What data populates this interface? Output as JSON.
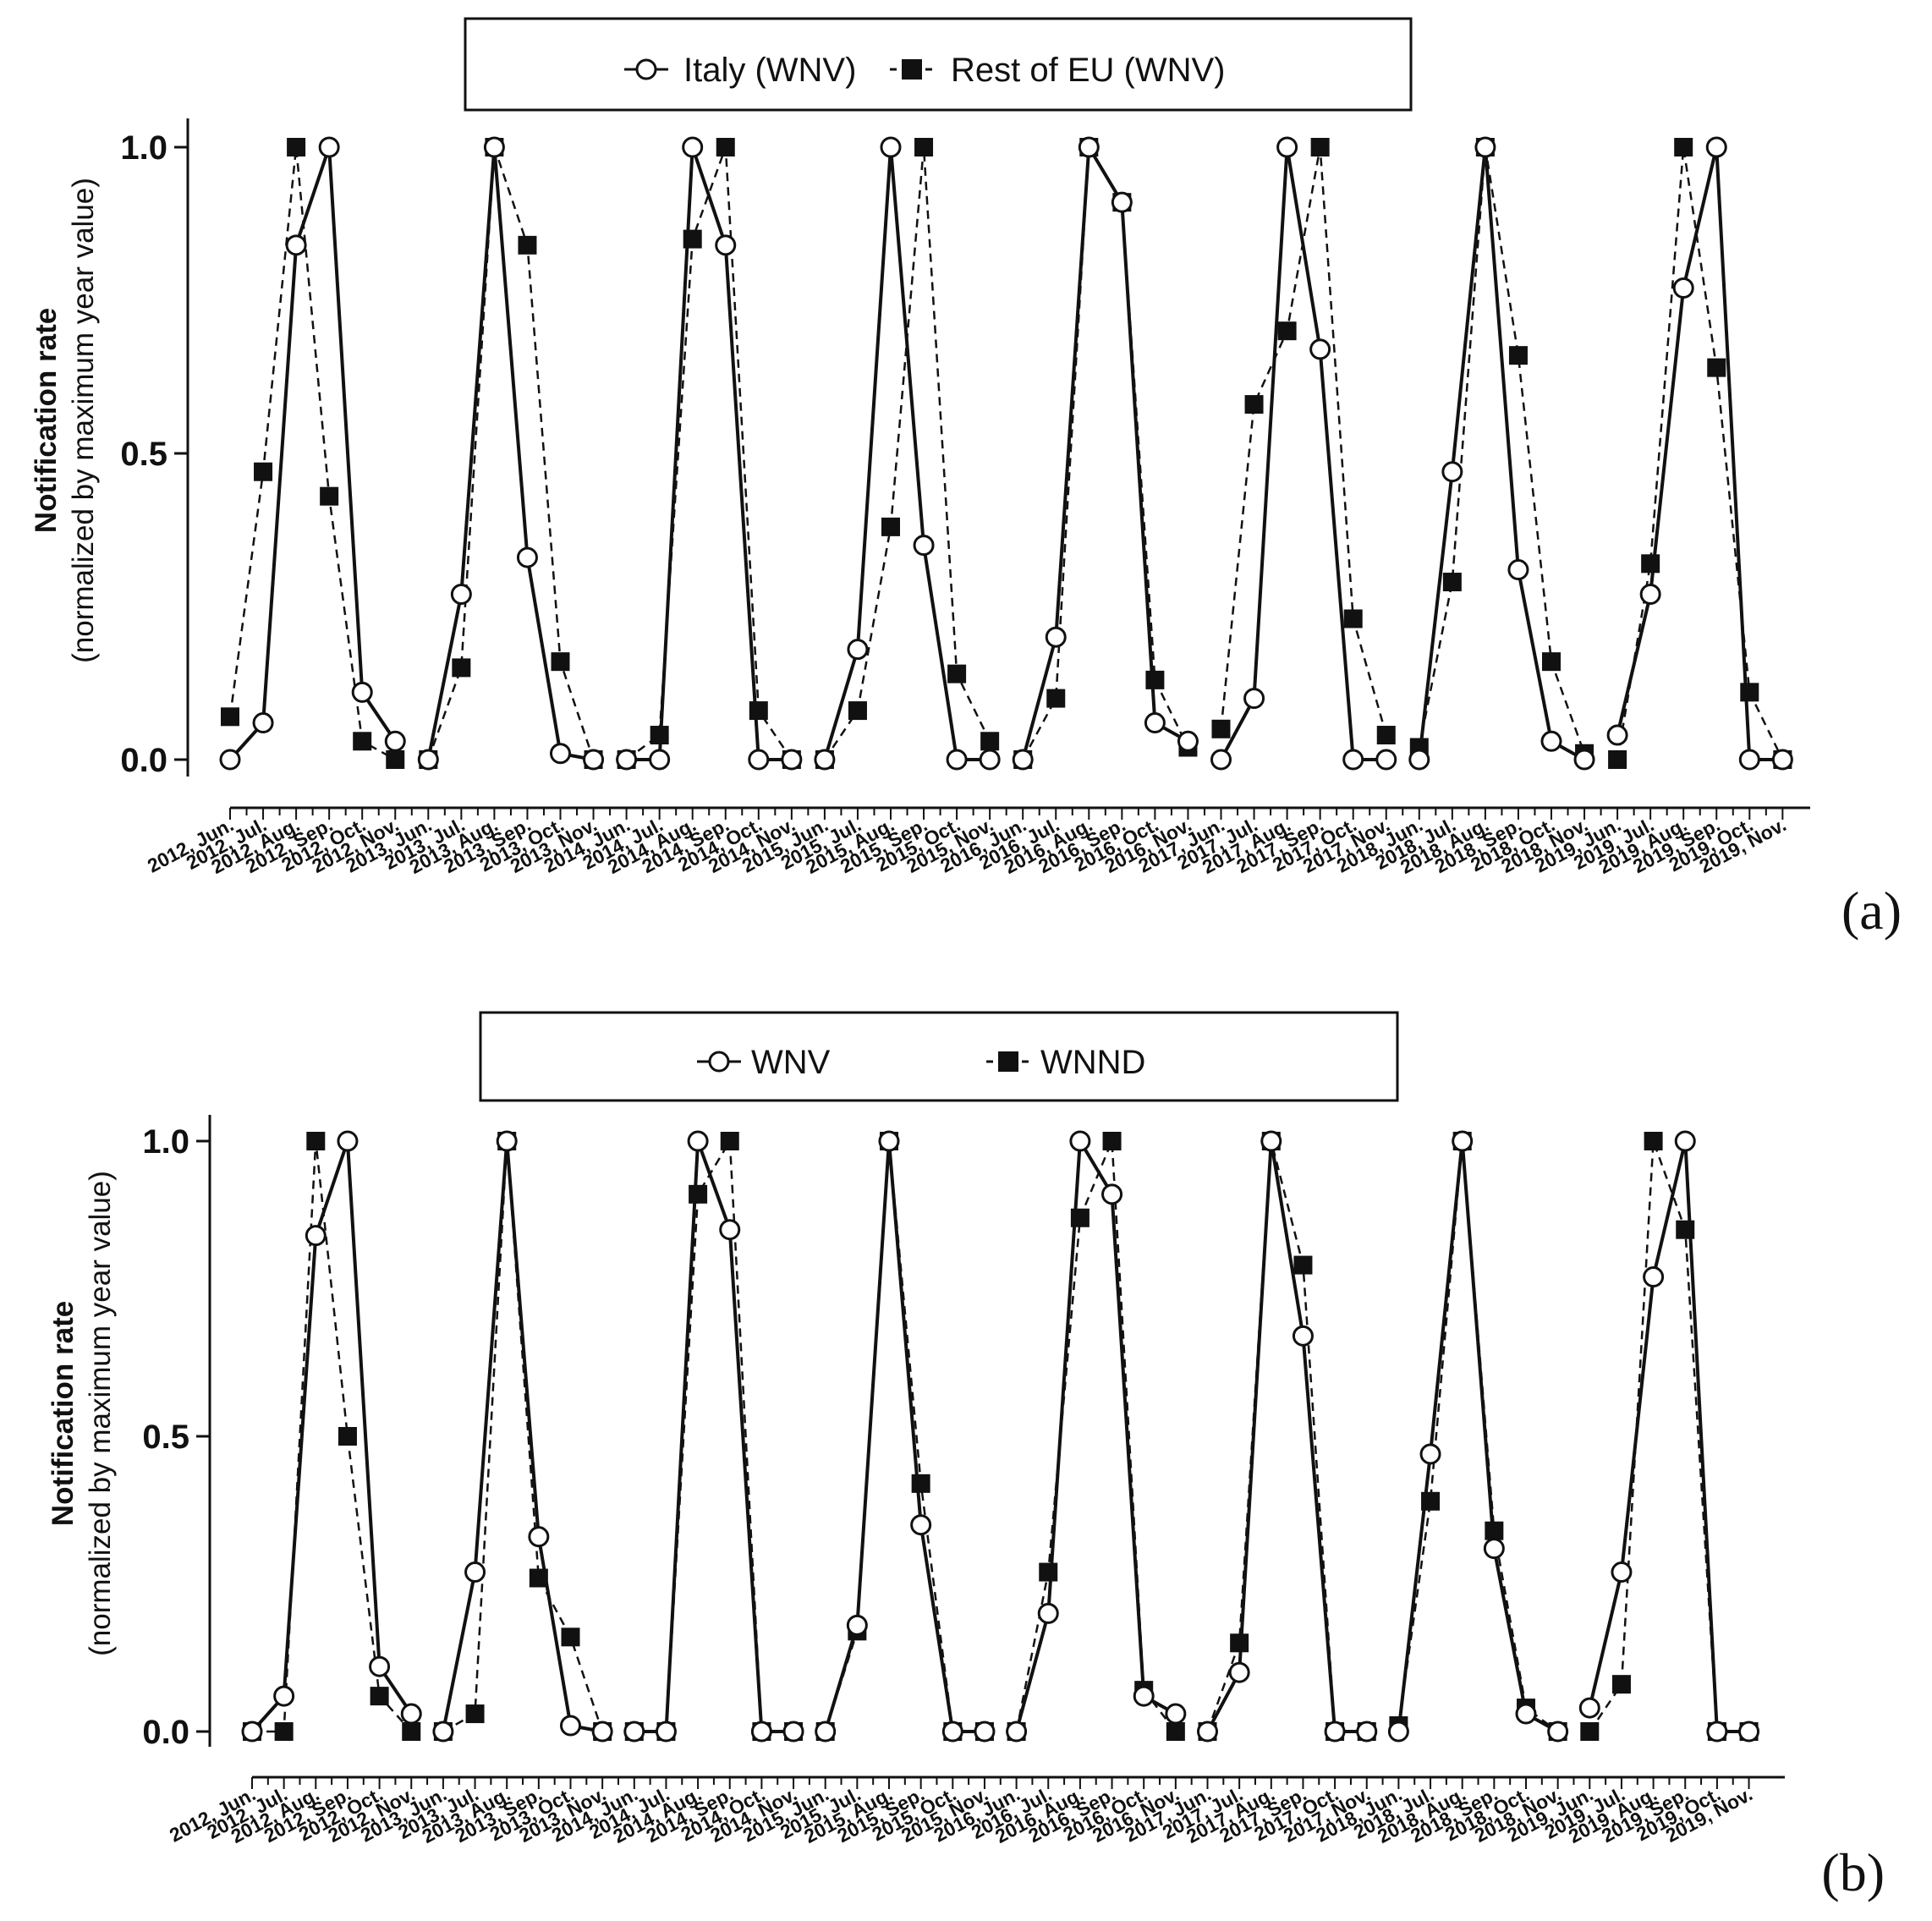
{
  "panels": [
    {
      "tag": "(a)",
      "legend": [
        "Italy (WNV)",
        "Rest of EU (WNV)"
      ],
      "chart_data": {
        "type": "line",
        "ylabel": "Notification rate",
        "ylabel_sub": "(normalized by maximum year value)",
        "yticks": [
          0.0,
          0.5,
          1.0
        ],
        "ytick_labels": [
          "0.0",
          "0.5",
          "1.0"
        ],
        "ylim": [
          0,
          1
        ],
        "categories": [
          "2012, Jun.",
          "2012, Jul.",
          "2012, Aug.",
          "2012, Sep.",
          "2012, Oct.",
          "2012, Nov.",
          "2013, Jun.",
          "2013, Jul.",
          "2013, Aug.",
          "2013, Sep.",
          "2013, Oct.",
          "2013, Nov.",
          "2014, Jun.",
          "2014, Jul.",
          "2014, Aug.",
          "2014, Sep.",
          "2014, Oct.",
          "2014, Nov.",
          "2015, Jun.",
          "2015, Jul.",
          "2015, Aug.",
          "2015, Sep.",
          "2015, Oct.",
          "2015, Nov.",
          "2016, Jun.",
          "2016, Jul.",
          "2016, Aug.",
          "2016, Sep.",
          "2016, Oct.",
          "2016, Nov.",
          "2017, Jun.",
          "2017, Jul.",
          "2017, Aug.",
          "2017, Sep.",
          "2017, Oct.",
          "2017, Nov.",
          "2018, Jun.",
          "2018, Jul.",
          "2018, Aug.",
          "2018, Sep.",
          "2018, Oct.",
          "2018, Nov.",
          "2019, Jun.",
          "2019, Jul.",
          "2019, Aug.",
          "2019, Sep.",
          "2019, Oct.",
          "2019, Nov."
        ],
        "series": [
          {
            "name": "Italy (WNV)",
            "marker": "open-circle",
            "line": "solid",
            "values": [
              0.0,
              0.06,
              0.84,
              1.0,
              0.11,
              0.03,
              0.0,
              0.27,
              1.0,
              0.33,
              0.01,
              0.0,
              0.0,
              0.0,
              1.0,
              0.84,
              0.0,
              0.0,
              0.0,
              0.18,
              1.0,
              0.35,
              0.0,
              0.0,
              0.0,
              0.2,
              1.0,
              0.91,
              0.06,
              0.03,
              0.0,
              0.1,
              1.0,
              0.67,
              0.0,
              0.0,
              0.0,
              0.47,
              1.0,
              0.31,
              0.03,
              0.0,
              0.04,
              0.27,
              0.77,
              1.0,
              0.0,
              0.0
            ]
          },
          {
            "name": "Rest of EU (WNV)",
            "marker": "filled-square",
            "line": "dashed",
            "values": [
              0.07,
              0.47,
              1.0,
              0.43,
              0.03,
              0.0,
              0.0,
              0.15,
              1.0,
              0.84,
              0.16,
              0.0,
              0.0,
              0.04,
              0.85,
              1.0,
              0.08,
              0.0,
              0.0,
              0.08,
              0.38,
              1.0,
              0.14,
              0.03,
              0.0,
              0.1,
              1.0,
              0.91,
              0.13,
              0.02,
              0.05,
              0.58,
              0.7,
              1.0,
              0.23,
              0.04,
              0.02,
              0.29,
              1.0,
              0.66,
              0.16,
              0.01,
              0.0,
              0.32,
              1.0,
              0.64,
              0.11,
              0.0
            ]
          }
        ]
      }
    },
    {
      "tag": "(b)",
      "legend": [
        "WNV",
        "WNND"
      ],
      "chart_data": {
        "type": "line",
        "ylabel": "Notification rate",
        "ylabel_sub": "(normalized by maximum year value)",
        "yticks": [
          0.0,
          0.5,
          1.0
        ],
        "ytick_labels": [
          "0.0",
          "0.5",
          "1.0"
        ],
        "ylim": [
          0,
          1
        ],
        "categories": [
          "2012, Jun.",
          "2012, Jul.",
          "2012, Aug.",
          "2012, Sep.",
          "2012, Oct.",
          "2012, Nov.",
          "2013, Jun.",
          "2013, Jul.",
          "2013, Aug.",
          "2013, Sep.",
          "2013, Oct.",
          "2013, Nov.",
          "2014, Jun.",
          "2014, Jul.",
          "2014, Aug.",
          "2014, Sep.",
          "2014, Oct.",
          "2014, Nov.",
          "2015, Jun.",
          "2015, Jul.",
          "2015, Aug.",
          "2015, Sep.",
          "2015, Oct.",
          "2015, Nov.",
          "2016, Jun.",
          "2016, Jul.",
          "2016, Aug.",
          "2016, Sep.",
          "2016, Oct.",
          "2016, Nov.",
          "2017, Jun.",
          "2017, Jul.",
          "2017, Aug.",
          "2017, Sep.",
          "2017, Oct.",
          "2017, Nov.",
          "2018, Jun.",
          "2018, Jul.",
          "2018, Aug.",
          "2018, Sep.",
          "2018, Oct.",
          "2018, Nov.",
          "2019, Jun.",
          "2019, Jul.",
          "2019, Aug.",
          "2019, Sep.",
          "2019, Oct.",
          "2019, Nov."
        ],
        "series": [
          {
            "name": "WNV",
            "marker": "open-circle",
            "line": "solid",
            "values": [
              0.0,
              0.06,
              0.84,
              1.0,
              0.11,
              0.03,
              0.0,
              0.27,
              1.0,
              0.33,
              0.01,
              0.0,
              0.0,
              0.0,
              1.0,
              0.85,
              0.0,
              0.0,
              0.0,
              0.18,
              1.0,
              0.35,
              0.0,
              0.0,
              0.0,
              0.2,
              1.0,
              0.91,
              0.06,
              0.03,
              0.0,
              0.1,
              1.0,
              0.67,
              0.0,
              0.0,
              0.0,
              0.47,
              1.0,
              0.31,
              0.03,
              0.0,
              0.04,
              0.27,
              0.77,
              1.0,
              0.0,
              0.0
            ]
          },
          {
            "name": "WNND",
            "marker": "filled-square",
            "line": "dashed",
            "values": [
              0.0,
              0.0,
              1.0,
              0.5,
              0.06,
              0.0,
              0.0,
              0.03,
              1.0,
              0.26,
              0.16,
              0.0,
              0.0,
              0.0,
              0.91,
              1.0,
              0.0,
              0.0,
              0.0,
              0.17,
              1.0,
              0.42,
              0.0,
              0.0,
              0.0,
              0.27,
              0.87,
              1.0,
              0.07,
              0.0,
              0.0,
              0.15,
              1.0,
              0.79,
              0.0,
              0.0,
              0.01,
              0.39,
              1.0,
              0.34,
              0.04,
              0.0,
              0.0,
              0.08,
              1.0,
              0.85,
              0.0,
              0.0
            ]
          }
        ]
      }
    }
  ]
}
